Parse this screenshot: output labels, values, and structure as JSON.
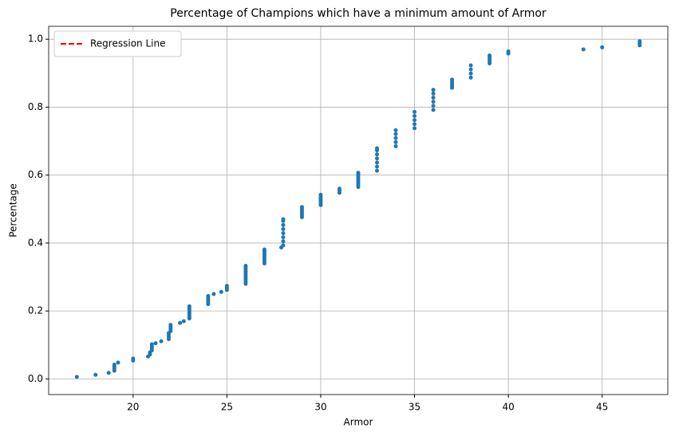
{
  "chart_data": {
    "type": "scatter",
    "title": "Percentage of Champions which have a minimum amount of Armor",
    "x_label": "Armor",
    "y_label": "Percentage",
    "xlim": [
      15.5,
      48.5
    ],
    "ylim": [
      -0.046,
      1.038
    ],
    "xticks": [
      20,
      25,
      30,
      35,
      40,
      45
    ],
    "yticks": [
      {
        "value": 0,
        "label": "0.0"
      },
      0.2,
      0.4,
      0.6,
      0.8,
      {
        "value": 1,
        "label": "1.0"
      }
    ],
    "grid": true,
    "legend_position": "upper left",
    "legend_entries": [
      {
        "name": "Regression Line",
        "color": "#ff0000",
        "style": "dashed"
      }
    ],
    "series": [
      {
        "color": "#1f77b4",
        "x": [
          17,
          18,
          18.7,
          19,
          19,
          19,
          19,
          19.2,
          20,
          20,
          20.8,
          20.9,
          20.9,
          21,
          21,
          21,
          21,
          21.2,
          21.5,
          21.9,
          21.9,
          21.9,
          21.9,
          22,
          22,
          22,
          22,
          22.5,
          22.7,
          23,
          23,
          23,
          23,
          23,
          23,
          23,
          24,
          24,
          24,
          24,
          24,
          24.3,
          24.7,
          25,
          25,
          25,
          26,
          26,
          26,
          26,
          26,
          26,
          26,
          26,
          26,
          26,
          27,
          27,
          27,
          27,
          27,
          27,
          27,
          27,
          27.9,
          28,
          28,
          28,
          28,
          28,
          28,
          28,
          28,
          29,
          29,
          29,
          29,
          29,
          29,
          30,
          30,
          30,
          30,
          30,
          30,
          31,
          31,
          31,
          32,
          32,
          32,
          32,
          32,
          32,
          32,
          32,
          33,
          33,
          33,
          33,
          33,
          33,
          33,
          34,
          34,
          34,
          34,
          34,
          35,
          35,
          35,
          35,
          35,
          36,
          36,
          36,
          36,
          36,
          36,
          37,
          37,
          37,
          37,
          37,
          38,
          38,
          38,
          38,
          39,
          39,
          39,
          39,
          39,
          40,
          40,
          44,
          45,
          47,
          47,
          47
        ],
        "values": [
          0.006,
          0.012,
          0.018,
          0.024,
          0.03,
          0.036,
          0.042,
          0.048,
          0.054,
          0.06,
          0.066,
          0.072,
          0.078,
          0.084,
          0.09,
          0.096,
          0.102,
          0.105,
          0.111,
          0.117,
          0.123,
          0.129,
          0.135,
          0.141,
          0.147,
          0.153,
          0.159,
          0.165,
          0.17,
          0.178,
          0.184,
          0.19,
          0.196,
          0.202,
          0.208,
          0.214,
          0.22,
          0.226,
          0.232,
          0.238,
          0.244,
          0.25,
          0.256,
          0.262,
          0.268,
          0.274,
          0.28,
          0.286,
          0.292,
          0.298,
          0.304,
          0.31,
          0.316,
          0.322,
          0.328,
          0.333,
          0.34,
          0.346,
          0.352,
          0.358,
          0.364,
          0.37,
          0.376,
          0.381,
          0.387,
          0.393,
          0.405,
          0.417,
          0.429,
          0.441,
          0.453,
          0.465,
          0.47,
          0.476,
          0.482,
          0.488,
          0.494,
          0.5,
          0.506,
          0.512,
          0.518,
          0.524,
          0.53,
          0.536,
          0.542,
          0.548,
          0.554,
          0.56,
          0.565,
          0.571,
          0.577,
          0.583,
          0.589,
          0.595,
          0.601,
          0.607,
          0.613,
          0.625,
          0.637,
          0.649,
          0.661,
          0.673,
          0.679,
          0.685,
          0.697,
          0.709,
          0.721,
          0.732,
          0.738,
          0.75,
          0.762,
          0.774,
          0.786,
          0.792,
          0.804,
          0.816,
          0.828,
          0.84,
          0.851,
          0.857,
          0.863,
          0.869,
          0.875,
          0.881,
          0.887,
          0.899,
          0.911,
          0.923,
          0.929,
          0.935,
          0.941,
          0.947,
          0.952,
          0.958,
          0.964,
          0.97,
          0.976,
          0.982,
          0.988,
          0.994
        ]
      }
    ]
  }
}
